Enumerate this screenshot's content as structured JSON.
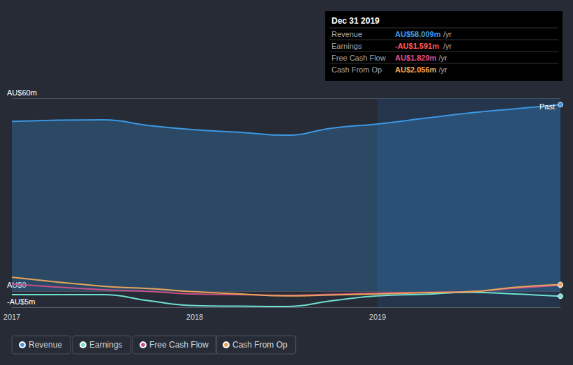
{
  "chart_data": {
    "type": "line",
    "x": [
      2017,
      2017.5,
      2017.75,
      2018,
      2018.25,
      2018.5,
      2018.75,
      2019,
      2019.25,
      2019.5,
      2019.75,
      2020
    ],
    "xlim": [
      2017,
      2020
    ],
    "xticks": [
      2017,
      2018,
      2019
    ],
    "ylim": [
      -5,
      60
    ],
    "yticks": [
      {
        "value": -5,
        "label": "-AU$5m"
      },
      {
        "value": 0,
        "label": "AU$0"
      },
      {
        "value": 60,
        "label": "AU$60m"
      }
    ],
    "grid": true,
    "legend": "bottom-left",
    "shaded_x": [
      2019,
      2020
    ],
    "end_label": "Past",
    "series": [
      {
        "name": "Revenue",
        "color": "#3b97e3",
        "type": "area",
        "values": [
          52.8,
          53.3,
          51.5,
          50.2,
          49.4,
          48.5,
          50.7,
          52.0,
          53.7,
          55.4,
          56.7,
          58.009
        ]
      },
      {
        "name": "Earnings",
        "color": "#6fe0d2",
        "type": "line",
        "values": [
          -1.1,
          -1.1,
          -3.0,
          -4.5,
          -4.7,
          -4.8,
          -3.0,
          -1.5,
          -1.0,
          -0.4,
          -0.9,
          -1.591
        ]
      },
      {
        "name": "Free Cash Flow",
        "color": "#c9508a",
        "type": "line",
        "values": [
          2.2,
          0.4,
          -0.1,
          -0.9,
          -1.1,
          -1.3,
          -1.0,
          -0.6,
          -0.4,
          -0.2,
          0.9,
          1.829
        ]
      },
      {
        "name": "Cash From Op",
        "color": "#e8a45a",
        "type": "line",
        "values": [
          4.3,
          1.5,
          0.8,
          -0.2,
          -0.9,
          -1.5,
          -1.2,
          -0.9,
          -0.5,
          -0.2,
          1.2,
          2.056
        ]
      }
    ],
    "summary": {
      "date": "Dec 31 2019",
      "rows": [
        {
          "label": "Revenue",
          "value": "AU$58.009m",
          "unit": "/yr",
          "color": "#3f9de6"
        },
        {
          "label": "Earnings",
          "value": "-AU$1.591m",
          "unit": "/yr",
          "color": "#ff5a5a"
        },
        {
          "label": "Free Cash Flow",
          "value": "AU$1.829m",
          "unit": "/yr",
          "color": "#e0508a"
        },
        {
          "label": "Cash From Op",
          "value": "AU$2.056m",
          "unit": "/yr",
          "color": "#f5a851"
        }
      ]
    }
  }
}
